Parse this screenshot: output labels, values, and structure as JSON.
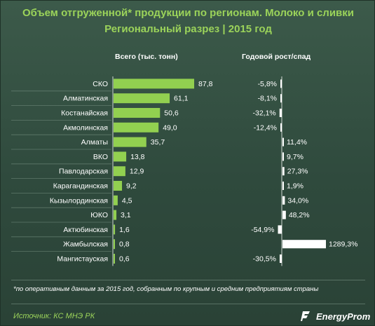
{
  "title_line1": "Объем отгруженной* продукции по регионам. Молоко и сливки",
  "title_line2": "Региональный разрез | 2015 год",
  "footnote": "*по оперативным данным за 2015 год, собранным по крупным и средним предприятиям страны",
  "source": "Источник: КС МНЭ РК",
  "logo_text": "EnergyProm",
  "colors": {
    "volume_bar": "#92d050",
    "growth_bar": "#ffffff",
    "title": "#9bd35a",
    "background": "#2f4a3d"
  },
  "chart_data": [
    {
      "type": "bar",
      "orientation": "horizontal",
      "title": "Всего (тыс. тонн)",
      "categories": [
        "СКО",
        "Алматинская",
        "Костанайская",
        "Акмолинская",
        "Алматы",
        "ВКО",
        "Павлодарская",
        "Карагандинская",
        "Кызылординская",
        "ЮКО",
        "Актюбинская",
        "Жамбылская",
        "Мангистауская"
      ],
      "values": [
        87.8,
        61.1,
        50.6,
        49.0,
        35.7,
        13.8,
        12.9,
        9.2,
        4.5,
        3.1,
        1.6,
        0.8,
        0.6
      ],
      "labels": [
        "87,8",
        "61,1",
        "50,6",
        "49,0",
        "35,7",
        "13,8",
        "12,9",
        "9,2",
        "4,5",
        "3,1",
        "1,6",
        "0,8",
        "0,6"
      ],
      "xlim": [
        0,
        92
      ],
      "grid": false
    },
    {
      "type": "bar",
      "orientation": "horizontal",
      "title": "Годовой рост/спад",
      "categories": [
        "СКО",
        "Алматинская",
        "Костанайская",
        "Акмолинская",
        "Алматы",
        "ВКО",
        "Павлодарская",
        "Карагандинская",
        "Кызылординская",
        "ЮКО",
        "Актюбинская",
        "Жамбылская",
        "Мангистауская"
      ],
      "values": [
        -5.8,
        -8.1,
        -32.1,
        -12.4,
        11.4,
        9.7,
        27.3,
        1.9,
        34.0,
        48.2,
        -54.9,
        1289.3,
        -30.5
      ],
      "labels": [
        "-5,8%",
        "-8,1%",
        "-32,1%",
        "-12,4%",
        "11,4%",
        "9,7%",
        "27,3%",
        "1,9%",
        "34,0%",
        "48,2%",
        "-54,9%",
        "1289,3%",
        "-30,5%"
      ],
      "unit": "%",
      "grid": false
    }
  ]
}
